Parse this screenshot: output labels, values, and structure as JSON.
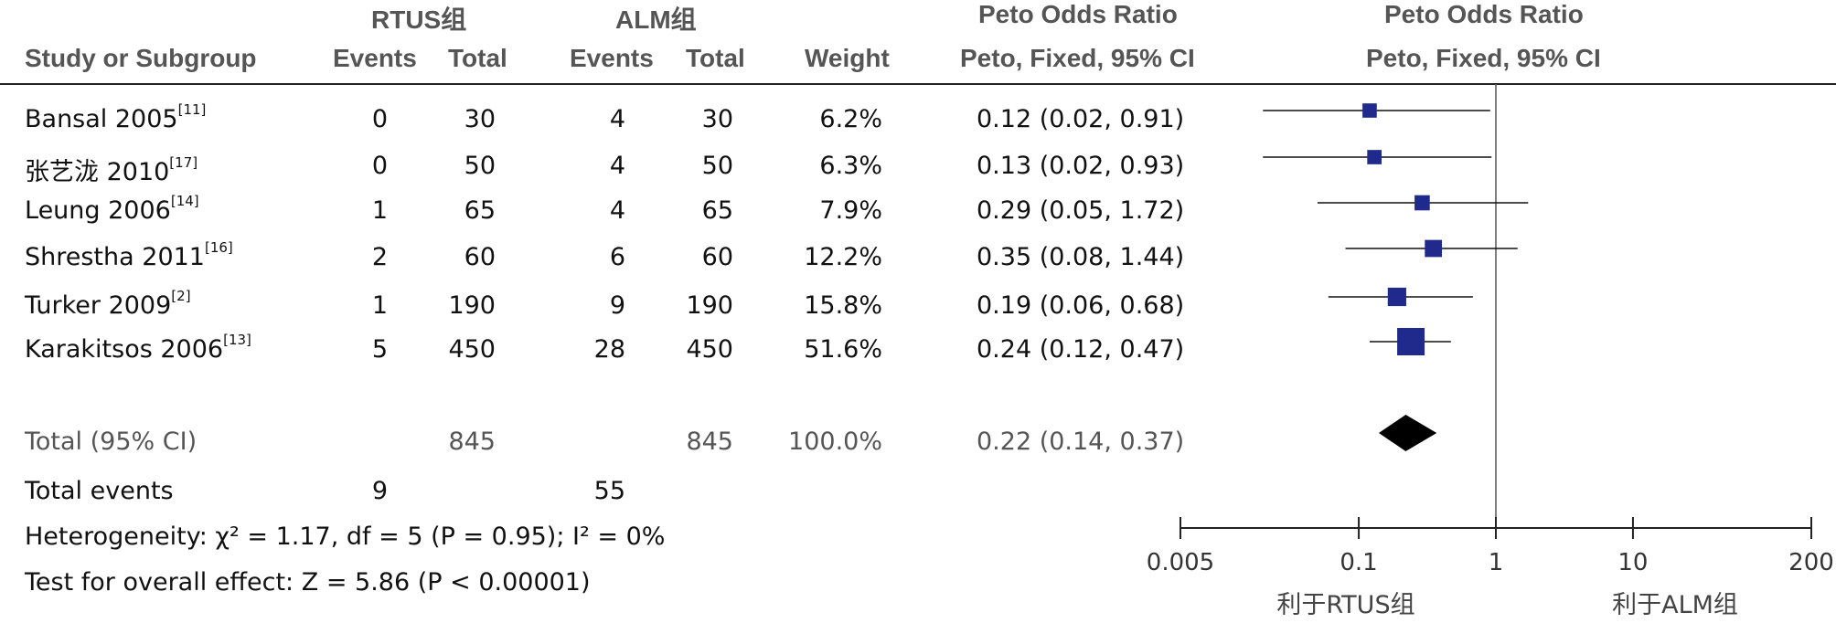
{
  "header": {
    "group1": "RTUS组",
    "group2": "ALM组",
    "col_study": "Study or Subgroup",
    "col_events1": "Events",
    "col_total1": "Total",
    "col_events2": "Events",
    "col_total2": "Total",
    "col_weight": "Weight",
    "col_effect_title": "Peto Odds Ratio",
    "col_effect_method": "Peto, Fixed, 95% CI",
    "plot_title": "Peto Odds Ratio",
    "plot_method": "Peto, Fixed, 95% CI"
  },
  "studies": [
    {
      "name": "Bansal 2005",
      "ref": "[11]",
      "e1": "0",
      "t1": "30",
      "e2": "4",
      "t2": "30",
      "weight": "6.2%",
      "ci_text": "0.12 (0.02, 0.91)"
    },
    {
      "name": "张艺泷 2010",
      "ref": "[17]",
      "e1": "0",
      "t1": "50",
      "e2": "4",
      "t2": "50",
      "weight": "6.3%",
      "ci_text": "0.13 (0.02, 0.93)"
    },
    {
      "name": "Leung 2006",
      "ref": "[14]",
      "e1": "1",
      "t1": "65",
      "e2": "4",
      "t2": "65",
      "weight": "7.9%",
      "ci_text": "0.29 (0.05, 1.72)"
    },
    {
      "name": "Shrestha 2011",
      "ref": "[16]",
      "e1": "2",
      "t1": "60",
      "e2": "6",
      "t2": "60",
      "weight": "12.2%",
      "ci_text": "0.35 (0.08, 1.44)"
    },
    {
      "name": "Turker 2009",
      "ref": "[2]",
      "e1": "1",
      "t1": "190",
      "e2": "9",
      "t2": "190",
      "weight": "15.8%",
      "ci_text": "0.19 (0.06, 0.68)"
    },
    {
      "name": "Karakitsos 2006",
      "ref": "[13]",
      "e1": "5",
      "t1": "450",
      "e2": "28",
      "t2": "450",
      "weight": "51.6%",
      "ci_text": "0.24 (0.12, 0.47)"
    }
  ],
  "total": {
    "label": "Total (95% CI)",
    "t1": "845",
    "t2": "845",
    "weight": "100.0%",
    "ci_text": "0.22 (0.14, 0.37)"
  },
  "total_events": {
    "label": "Total events",
    "e1": "9",
    "e2": "55"
  },
  "heterogeneity": "Heterogeneity: χ² = 1.17, df = 5 (P = 0.95); I² = 0%",
  "overall_effect": "Test for overall effect: Z = 5.86 (P < 0.00001)",
  "chart_data": {
    "type": "forest",
    "scale": "log",
    "xlim": [
      0.005,
      200
    ],
    "ticks": [
      0.005,
      0.1,
      1,
      10,
      200
    ],
    "tick_labels": [
      "0.005",
      "0.1",
      "1",
      "10",
      "200"
    ],
    "null_value": 1,
    "favours_left": "利于RTUS组",
    "favours_right": "利于ALM组",
    "marker_color": "#1f2a8c",
    "diamond_color": "#000000",
    "studies": [
      {
        "or": 0.12,
        "lo": 0.02,
        "hi": 0.91,
        "weight": 6.2
      },
      {
        "or": 0.13,
        "lo": 0.02,
        "hi": 0.93,
        "weight": 6.3
      },
      {
        "or": 0.29,
        "lo": 0.05,
        "hi": 1.72,
        "weight": 7.9
      },
      {
        "or": 0.35,
        "lo": 0.08,
        "hi": 1.44,
        "weight": 12.2
      },
      {
        "or": 0.19,
        "lo": 0.06,
        "hi": 0.68,
        "weight": 15.8
      },
      {
        "or": 0.24,
        "lo": 0.12,
        "hi": 0.47,
        "weight": 51.6
      }
    ],
    "total": {
      "or": 0.22,
      "lo": 0.14,
      "hi": 0.37
    }
  }
}
